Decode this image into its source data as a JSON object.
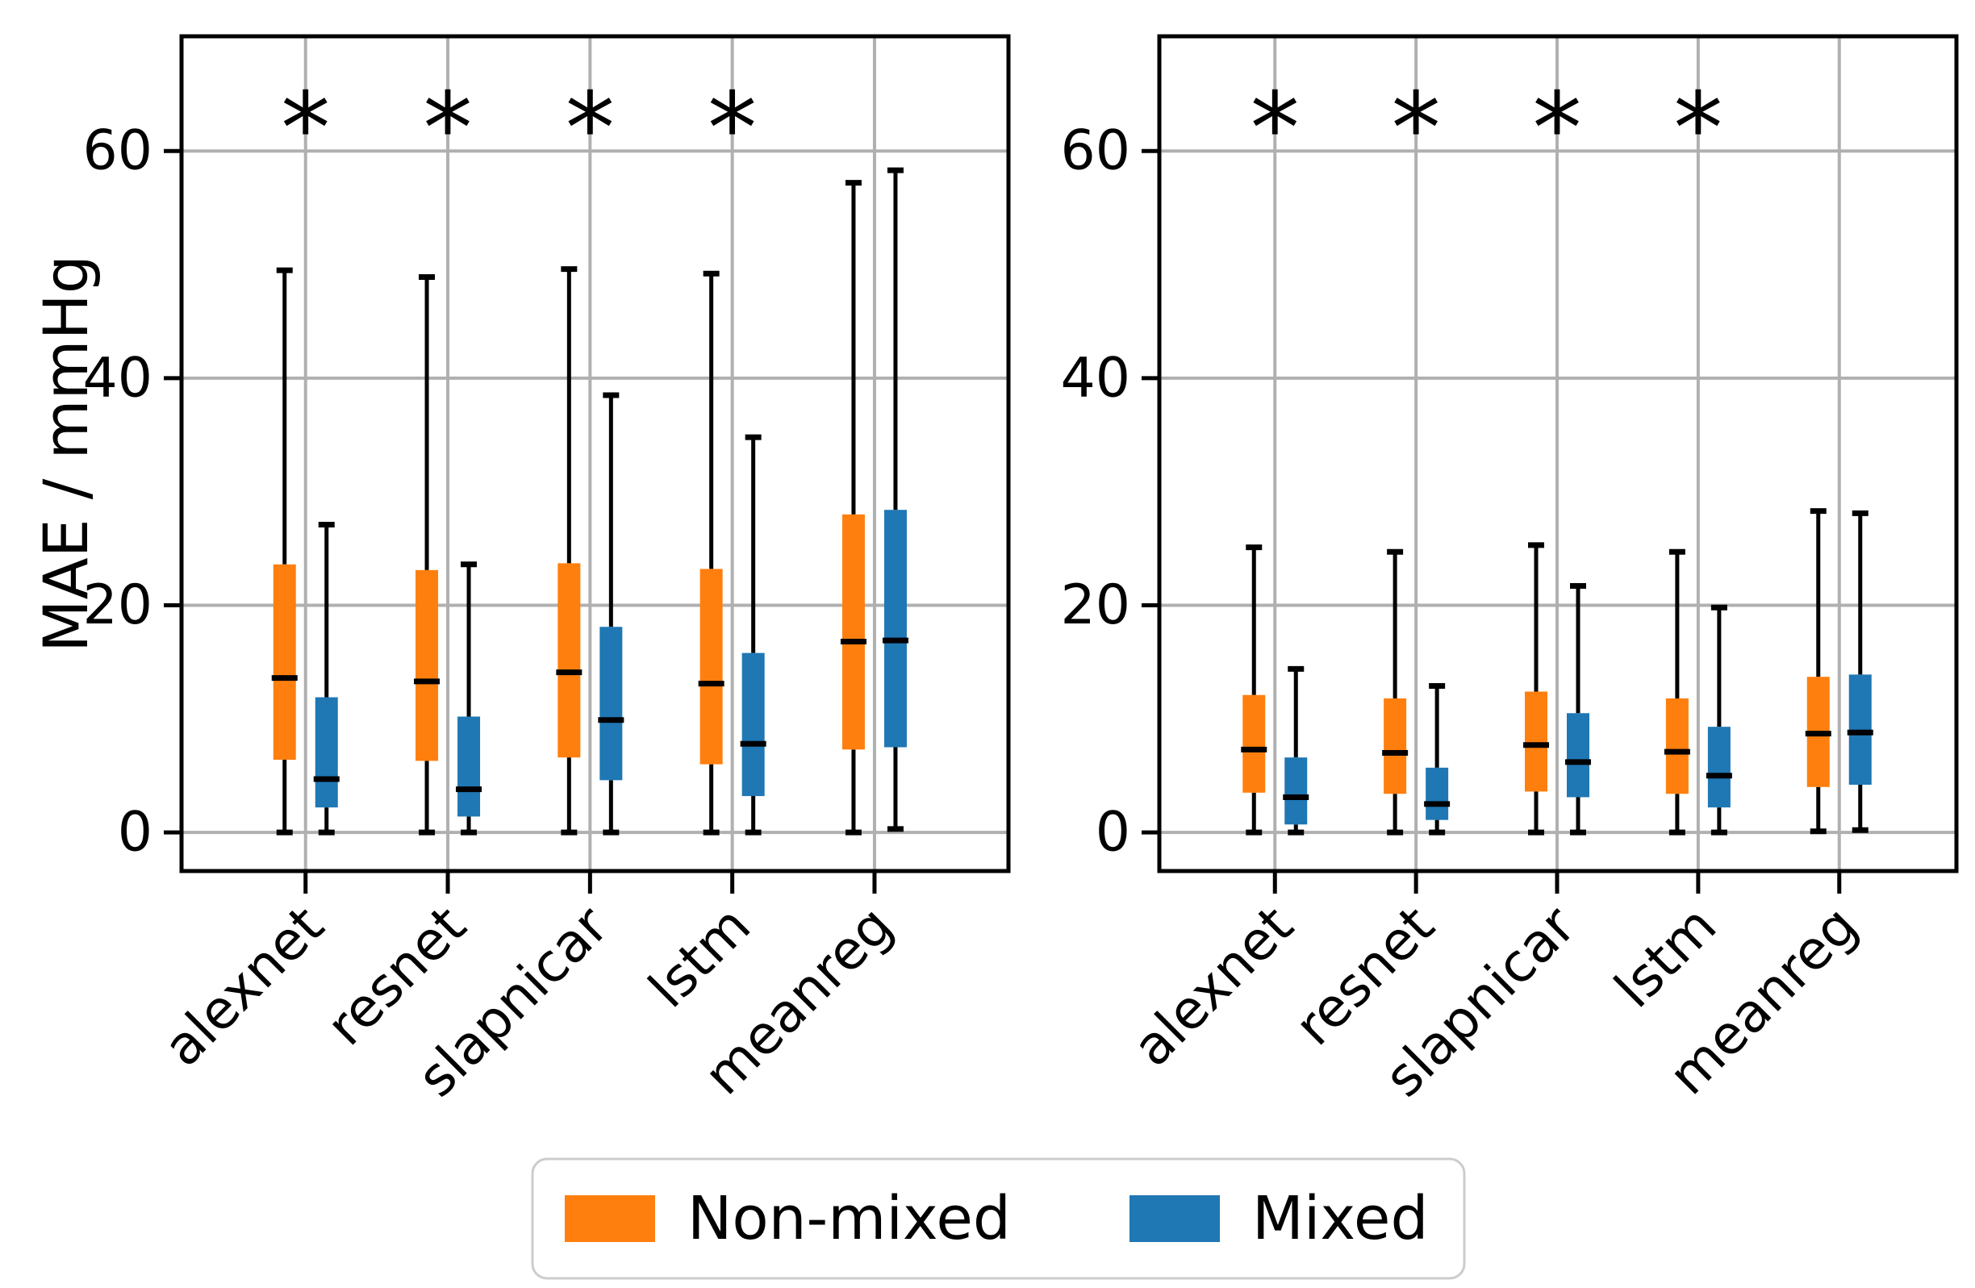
{
  "figure": {
    "background": "#ffffff",
    "ylabel": "MAE / mmHg",
    "significance_marker": "*",
    "colors": {
      "nonmixed": "#ff7f0e",
      "mixed": "#1f77b4",
      "gridline": "#b0b0b0",
      "spine": "#000000",
      "median": "#000000",
      "whisker": "#000000",
      "legend_border": "#cccccc"
    }
  },
  "legend": {
    "items": [
      {
        "label": "Non-mixed",
        "color": "#ff7f0e"
      },
      {
        "label": "Mixed",
        "color": "#1f77b4"
      }
    ]
  },
  "chart_data": [
    {
      "type": "boxplot",
      "panel": "left",
      "ylabel": "MAE / mmHg",
      "categories": [
        "alexnet",
        "resnet",
        "slapnicar",
        "lstm",
        "meanreg"
      ],
      "yticks": [
        0,
        20,
        40,
        60
      ],
      "ylim": [
        -3.4,
        70.1
      ],
      "grid": true,
      "significant": [
        true,
        true,
        true,
        true,
        false
      ],
      "significance_y": 63.5,
      "series": [
        {
          "name": "Non-mixed",
          "color": "#ff7f0e",
          "boxes": [
            {
              "whislo": 0,
              "q1": 6.4,
              "med": 13.6,
              "q3": 23.6,
              "whishi": 49.5
            },
            {
              "whislo": 0,
              "q1": 6.3,
              "med": 13.3,
              "q3": 23.1,
              "whishi": 48.9
            },
            {
              "whislo": 0,
              "q1": 6.6,
              "med": 14.1,
              "q3": 23.7,
              "whishi": 49.6
            },
            {
              "whislo": 0,
              "q1": 6.0,
              "med": 13.1,
              "q3": 23.2,
              "whishi": 49.2
            },
            {
              "whislo": 0,
              "q1": 7.3,
              "med": 16.8,
              "q3": 28.0,
              "whishi": 57.2
            }
          ]
        },
        {
          "name": "Mixed",
          "color": "#1f77b4",
          "boxes": [
            {
              "whislo": 0,
              "q1": 2.2,
              "med": 4.7,
              "q3": 11.9,
              "whishi": 27.1
            },
            {
              "whislo": 0,
              "q1": 1.4,
              "med": 3.8,
              "q3": 10.2,
              "whishi": 23.6
            },
            {
              "whislo": 0,
              "q1": 4.6,
              "med": 9.9,
              "q3": 18.1,
              "whishi": 38.5
            },
            {
              "whislo": 0,
              "q1": 3.2,
              "med": 7.8,
              "q3": 15.8,
              "whishi": 34.8
            },
            {
              "whislo": 0.3,
              "q1": 7.5,
              "med": 16.9,
              "q3": 28.4,
              "whishi": 58.3
            }
          ]
        }
      ]
    },
    {
      "type": "boxplot",
      "panel": "right",
      "ylabel": "",
      "categories": [
        "alexnet",
        "resnet",
        "slapnicar",
        "lstm",
        "meanreg"
      ],
      "yticks": [
        0,
        20,
        40,
        60
      ],
      "ylim": [
        -3.4,
        70.1
      ],
      "grid": true,
      "significant": [
        true,
        true,
        true,
        true,
        false
      ],
      "significance_y": 63.5,
      "series": [
        {
          "name": "Non-mixed",
          "color": "#ff7f0e",
          "boxes": [
            {
              "whislo": 0,
              "q1": 3.5,
              "med": 7.3,
              "q3": 12.1,
              "whishi": 25.1
            },
            {
              "whislo": 0,
              "q1": 3.4,
              "med": 7.0,
              "q3": 11.8,
              "whishi": 24.7
            },
            {
              "whislo": 0,
              "q1": 3.6,
              "med": 7.7,
              "q3": 12.4,
              "whishi": 25.3
            },
            {
              "whislo": 0,
              "q1": 3.4,
              "med": 7.1,
              "q3": 11.8,
              "whishi": 24.7
            },
            {
              "whislo": 0.1,
              "q1": 4.0,
              "med": 8.7,
              "q3": 13.7,
              "whishi": 28.3
            }
          ]
        },
        {
          "name": "Mixed",
          "color": "#1f77b4",
          "boxes": [
            {
              "whislo": 0,
              "q1": 0.7,
              "med": 3.1,
              "q3": 6.6,
              "whishi": 14.4
            },
            {
              "whislo": 0,
              "q1": 1.1,
              "med": 2.5,
              "q3": 5.7,
              "whishi": 12.9
            },
            {
              "whislo": 0,
              "q1": 3.1,
              "med": 6.2,
              "q3": 10.5,
              "whishi": 21.7
            },
            {
              "whislo": 0,
              "q1": 2.2,
              "med": 5.0,
              "q3": 9.3,
              "whishi": 19.8
            },
            {
              "whislo": 0.2,
              "q1": 4.2,
              "med": 8.8,
              "q3": 13.9,
              "whishi": 28.1
            }
          ]
        }
      ]
    }
  ]
}
